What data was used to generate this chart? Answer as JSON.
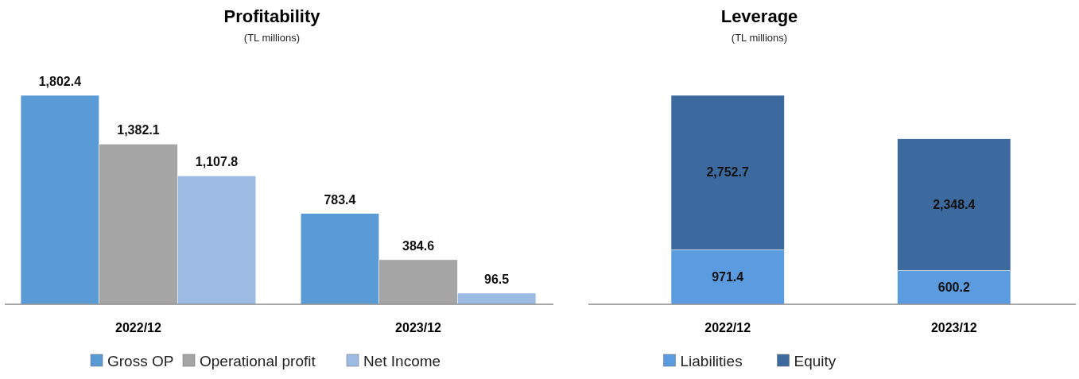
{
  "chart_data": [
    {
      "type": "bar",
      "title": "Profitability",
      "subtitle": "(TL millions)",
      "categories": [
        "2022/12",
        "2023/12"
      ],
      "series": [
        {
          "name": "Gross OP",
          "color": "#5b9bd5",
          "values": [
            1802.4,
            783.4
          ],
          "value_labels": [
            "1,802.4",
            "783.4"
          ]
        },
        {
          "name": "Operational profit",
          "color": "#a5a5a5",
          "values": [
            1382.1,
            384.6
          ],
          "value_labels": [
            "1,382.1",
            "384.6"
          ]
        },
        {
          "name": "Net Income",
          "color": "#9dbbe3",
          "values": [
            1107.8,
            96.5
          ],
          "value_labels": [
            "1,107.8",
            "96.5"
          ]
        }
      ],
      "legend": "bottom"
    },
    {
      "type": "bar",
      "title": "Leverage",
      "subtitle": "(TL millions)",
      "categories": [
        "2022/12",
        "2023/12"
      ],
      "stacked": true,
      "series": [
        {
          "name": "Liabilities",
          "color": "#5b9be0",
          "values": [
            971.4,
            600.2
          ],
          "value_labels": [
            "971.4",
            "600.2"
          ]
        },
        {
          "name": "Equity",
          "color": "#3d6a9e",
          "values": [
            2752.7,
            2348.4
          ],
          "value_labels": [
            "2,752.7",
            "2,348.4"
          ]
        }
      ],
      "legend": "bottom"
    }
  ]
}
